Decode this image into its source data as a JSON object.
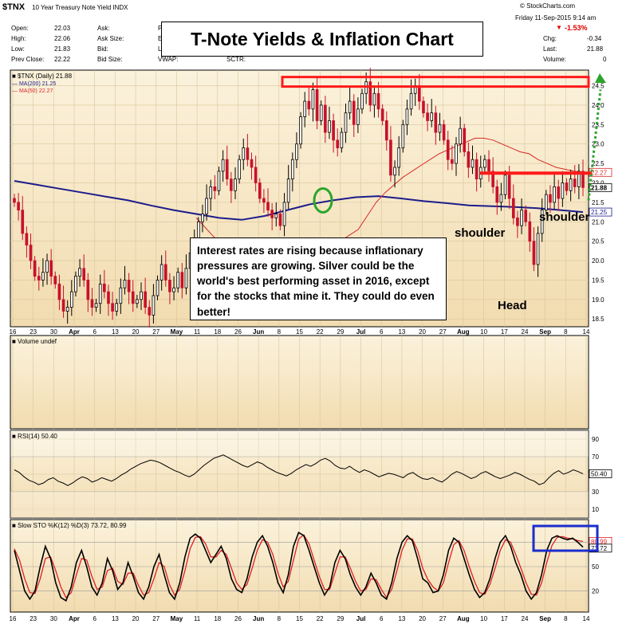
{
  "header": {
    "symbol": "$TNX",
    "name": "10 Year Treasury Note Yield INDX",
    "copyright": "© StockCharts.com",
    "date": "Friday  11-Sep-2015  9:14 am",
    "change_pct": "-1.53%",
    "fields_left": [
      {
        "label": "Open:",
        "value": "22.03"
      },
      {
        "label": "High:",
        "value": "22.06"
      },
      {
        "label": "Low:",
        "value": "21.83"
      },
      {
        "label": "Prev Close:",
        "value": "22.22"
      }
    ],
    "fields_mid": [
      {
        "label": "Ask:",
        "value": ""
      },
      {
        "label": "Ask Size:",
        "value": ""
      },
      {
        "label": "Bid:",
        "value": ""
      },
      {
        "label": "Bid Size:",
        "value": ""
      }
    ],
    "col3_labels": [
      "P",
      "E",
      "L",
      "VWAP:"
    ],
    "sctr": "SCTR:",
    "fields_right": [
      {
        "label": "Chg:",
        "value": "-0.34"
      },
      {
        "label": "Last:",
        "value": "21.88"
      },
      {
        "label": "Volume:",
        "value": "0"
      }
    ]
  },
  "title_box": "T-Note Yields & Inflation Chart",
  "note": "Interest rates are rising because inflationary pressures are growing.  Silver could be the world's best performing asset in 2016, except for the stocks that mine it.  They could do even better!",
  "annotations": {
    "shoulder_left": "shoulder",
    "shoulder_right": "shoulder",
    "head": "Head"
  },
  "colors": {
    "panel_bg": "#f2dcb0",
    "up": "#ffffff",
    "down": "#c8112b",
    "ma200": "#1c1c8c",
    "ma50": "#d62a2a",
    "frame": "#000000",
    "green": "#2ba52b",
    "blue_box": "#1a2ecc"
  },
  "chart_data": [
    {
      "type": "candlestick",
      "legend": [
        "$TNX (Daily) 21.88",
        "MA(200) 21.25",
        "MA(50) 22.27"
      ],
      "ylim": [
        18.3,
        24.9
      ],
      "y_ticks": [
        "18.5",
        "19.0",
        "19.5",
        "20.0",
        "20.5",
        "21.0",
        "21.5",
        "22.0",
        "22.5",
        "23.0",
        "23.5",
        "24.0",
        "24.5"
      ],
      "last_labels": [
        "22.27",
        "21.88",
        "21.25"
      ],
      "x_ticks": [
        "16",
        "23",
        "30",
        "Apr",
        "6",
        "13",
        "20",
        "27",
        "May",
        "11",
        "18",
        "26",
        "Jun",
        "8",
        "15",
        "22",
        "29",
        "Jul",
        "6",
        "13",
        "20",
        "27",
        "Aug",
        "10",
        "17",
        "24",
        "Sep",
        "8",
        "14"
      ],
      "close": [
        21.5,
        21.3,
        20.7,
        20.4,
        20.0,
        19.6,
        19.5,
        19.7,
        20.0,
        19.6,
        19.4,
        19.0,
        18.7,
        18.8,
        19.2,
        19.6,
        19.8,
        19.5,
        19.0,
        18.8,
        18.9,
        19.4,
        19.2,
        18.9,
        18.7,
        18.9,
        19.3,
        19.5,
        19.2,
        18.9,
        19.0,
        19.2,
        18.8,
        18.6,
        19.1,
        19.5,
        19.9,
        19.5,
        19.2,
        19.3,
        19.7,
        19.3,
        19.8,
        20.2,
        20.5,
        21.0,
        21.2,
        21.6,
        21.9,
        21.8,
        22.3,
        22.6,
        22.1,
        21.8,
        22.1,
        22.6,
        22.9,
        22.6,
        22.4,
        22.0,
        21.6,
        21.5,
        21.3,
        21.1,
        21.2,
        20.9,
        21.5,
        22.1,
        22.6,
        23.0,
        23.7,
        24.1,
        23.9,
        24.4,
        23.6,
        24.0,
        23.3,
        23.6,
        23.1,
        22.9,
        23.3,
        23.8,
        24.1,
        23.5,
        23.9,
        24.3,
        24.6,
        24.0,
        24.3,
        23.9,
        23.6,
        23.1,
        22.2,
        22.4,
        22.9,
        23.5,
        23.9,
        24.3,
        24.5,
        24.1,
        23.8,
        23.6,
        23.8,
        23.3,
        23.5,
        23.1,
        22.6,
        22.5,
        23.0,
        23.4,
        22.8,
        22.4,
        22.6,
        22.1,
        22.4,
        22.6,
        22.3,
        21.9,
        21.5,
        21.7,
        22.2,
        21.6,
        21.1,
        20.9,
        21.3,
        21.0,
        20.5,
        19.9,
        20.7,
        21.3,
        21.7,
        21.5,
        21.9,
        21.6,
        22.0,
        21.8,
        22.1,
        21.9,
        22.3,
        21.88
      ],
      "ma200": [
        22.05,
        21.95,
        21.85,
        21.75,
        21.65,
        21.55,
        21.42,
        21.3,
        21.2,
        21.1,
        21.05,
        21.15,
        21.3,
        21.45,
        21.55,
        21.63,
        21.66,
        21.6,
        21.53,
        21.48,
        21.42,
        21.4,
        21.38,
        21.35,
        21.3,
        21.25
      ],
      "ma50": [
        21.1,
        20.85,
        20.6,
        20.3,
        20.0,
        19.75,
        19.5,
        19.3,
        19.2,
        19.15,
        19.2,
        19.35,
        19.55,
        19.75,
        20.0,
        20.25,
        20.5,
        20.65,
        20.8,
        21.15,
        21.5,
        21.75,
        21.95,
        22.15,
        22.3,
        22.45,
        22.6,
        22.75,
        22.85,
        22.95,
        23.05,
        23.15,
        23.15,
        23.1,
        23.0,
        22.9,
        22.8,
        22.75,
        22.6,
        22.5,
        22.4,
        22.35,
        22.3,
        22.27
      ],
      "resistance_top": 24.6,
      "resistance_neck": 22.25
    },
    {
      "type": "volume",
      "label": "Volume undef",
      "values": []
    },
    {
      "type": "line",
      "label": "RSI(14) 50.40",
      "ylim": [
        0,
        100
      ],
      "y_ticks": [
        "10",
        "30",
        "50",
        "70",
        "90"
      ],
      "last_value": "50.40",
      "values": [
        55,
        52,
        47,
        43,
        41,
        38,
        40,
        44,
        46,
        42,
        40,
        37,
        40,
        44,
        47,
        45,
        41,
        43,
        46,
        44,
        42,
        45,
        49,
        52,
        56,
        59,
        62,
        64,
        66,
        65,
        63,
        60,
        57,
        54,
        52,
        49,
        47,
        50,
        55,
        60,
        64,
        68,
        70,
        72,
        69,
        66,
        63,
        60,
        58,
        61,
        64,
        62,
        58,
        55,
        52,
        50,
        48,
        51,
        55,
        58,
        61,
        59,
        62,
        66,
        68,
        65,
        60,
        57,
        56,
        59,
        55,
        52,
        55,
        53,
        50,
        47,
        49,
        51,
        50,
        48,
        46,
        50,
        52,
        48,
        45,
        44,
        46,
        43,
        41,
        45,
        50,
        53,
        51,
        48,
        45,
        47,
        51,
        53,
        50,
        47,
        45,
        47,
        49,
        52,
        50,
        47,
        44,
        42,
        38,
        40,
        46,
        51,
        54,
        50,
        52,
        55,
        53,
        50.4
      ]
    },
    {
      "type": "line",
      "label": "Slow STO %K(12) %D(3) 73.72, 80.99",
      "ylim": [
        0,
        100
      ],
      "y_ticks": [
        "20",
        "50",
        "80"
      ],
      "last_values": [
        "80.99",
        "73.72"
      ],
      "k": [
        70,
        45,
        20,
        10,
        20,
        50,
        75,
        60,
        30,
        12,
        8,
        25,
        55,
        70,
        50,
        25,
        15,
        30,
        60,
        45,
        22,
        30,
        55,
        38,
        18,
        10,
        25,
        50,
        65,
        40,
        18,
        10,
        30,
        62,
        85,
        90,
        85,
        70,
        55,
        65,
        75,
        60,
        35,
        22,
        18,
        35,
        62,
        80,
        88,
        75,
        55,
        30,
        18,
        40,
        75,
        92,
        88,
        70,
        50,
        30,
        15,
        25,
        55,
        70,
        60,
        40,
        25,
        15,
        25,
        42,
        30,
        15,
        10,
        30,
        60,
        80,
        88,
        82,
        60,
        35,
        30,
        18,
        20,
        40,
        70,
        85,
        80,
        60,
        40,
        22,
        12,
        18,
        35,
        60,
        80,
        88,
        75,
        55,
        40,
        20,
        10,
        18,
        40,
        70,
        85,
        88,
        85,
        83,
        85,
        80,
        74
      ],
      "d": [
        72,
        58,
        35,
        18,
        17,
        35,
        60,
        62,
        45,
        25,
        12,
        18,
        40,
        60,
        58,
        38,
        22,
        25,
        45,
        48,
        32,
        28,
        42,
        42,
        27,
        15,
        18,
        35,
        55,
        50,
        28,
        15,
        22,
        45,
        72,
        86,
        87,
        78,
        62,
        62,
        70,
        65,
        48,
        30,
        22,
        28,
        48,
        70,
        83,
        80,
        65,
        42,
        25,
        32,
        58,
        84,
        89,
        78,
        58,
        38,
        22,
        22,
        42,
        62,
        62,
        48,
        32,
        20,
        22,
        35,
        34,
        22,
        12,
        22,
        45,
        70,
        84,
        84,
        70,
        48,
        34,
        25,
        20,
        30,
        55,
        77,
        82,
        70,
        50,
        32,
        18,
        16,
        28,
        48,
        70,
        83,
        80,
        65,
        48,
        30,
        16,
        15,
        30,
        55,
        76,
        86,
        87,
        85,
        84,
        82,
        81
      ]
    }
  ]
}
